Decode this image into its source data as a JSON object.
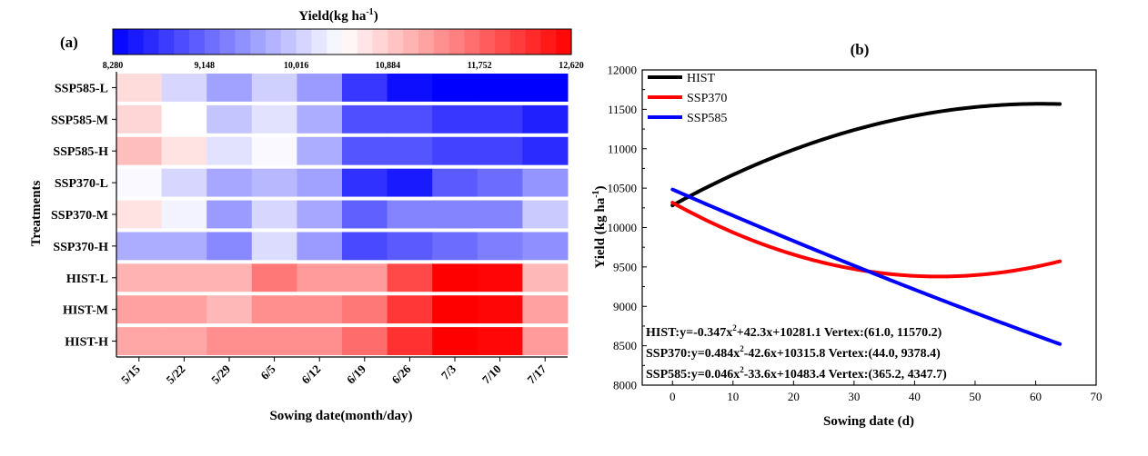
{
  "panel_a": {
    "label": "(a)",
    "colorbar_title": "Yield(kg ha",
    "colorbar_title_sup": "-1",
    "colorbar_title_end": ")",
    "colorbar_ticks": [
      "8,280",
      "9,148",
      "10,016",
      "10,884",
      "11,752",
      "12,620"
    ],
    "ylabel": "Treatments",
    "xlabel": "Sowing date(month/day)"
  },
  "panel_b": {
    "label": "(b)",
    "ylabel_main": "Yield (kg ha",
    "ylabel_sup": "-1",
    "ylabel_end": ")",
    "xlabel": "Sowing date (d)",
    "equations": [
      {
        "pre": "HIST:y=-0.347x",
        "sup": "2",
        "post": "+42.3x+10281.1 Vertex:(61.0, 11570.2)"
      },
      {
        "pre": "SSP370:y=0.484x",
        "sup": "2",
        "post": "-42.6x+10315.8 Vertex:(44.0, 9378.4)"
      },
      {
        "pre": "SSP585:y=0.046x",
        "sup": "2",
        "post": "-33.6x+10483.4 Vertex:(365.2, 4347.7)"
      }
    ]
  },
  "chart_data": [
    {
      "type": "heatmap",
      "x_categories": [
        "5/15",
        "5/22",
        "5/29",
        "6/5",
        "6/12",
        "6/19",
        "6/26",
        "7/3",
        "7/10",
        "7/17"
      ],
      "y_categories": [
        "SSP585-L",
        "SSP585-M",
        "SSP585-H",
        "SSP370-L",
        "SSP370-M",
        "SSP370-H",
        "HIST-L",
        "HIST-M",
        "HIST-H"
      ],
      "xlabel": "Sowing date(month/day)",
      "ylabel": "Treatments",
      "colorbar": {
        "min": 8280,
        "max": 12620,
        "low_color": "#0000ff",
        "mid_color": "#ffffff",
        "high_color": "#ff0000"
      },
      "values": [
        [
          10750,
          10100,
          9650,
          10050,
          9600,
          8750,
          8400,
          8280,
          8280,
          8280
        ],
        [
          10800,
          10450,
          9950,
          10200,
          9750,
          8950,
          8950,
          8750,
          8750,
          8550
        ],
        [
          11000,
          10700,
          10200,
          10400,
          9750,
          9000,
          9000,
          8850,
          8850,
          8650
        ],
        [
          10400,
          10100,
          9700,
          9850,
          9650,
          8700,
          8500,
          9050,
          9200,
          9550
        ],
        [
          10700,
          10350,
          9600,
          10100,
          9700,
          9100,
          9400,
          9400,
          9400,
          10000
        ],
        [
          9750,
          9750,
          9450,
          10150,
          9600,
          8900,
          9050,
          9200,
          9350,
          9500
        ],
        [
          11100,
          11100,
          11100,
          11600,
          11300,
          11300,
          12000,
          12620,
          12580,
          11050
        ],
        [
          11250,
          11250,
          11050,
          11400,
          11400,
          11600,
          12150,
          12620,
          12570,
          11250
        ],
        [
          11200,
          11200,
          11400,
          11400,
          11400,
          11700,
          12200,
          12620,
          12560,
          11300
        ]
      ]
    },
    {
      "type": "line",
      "xlabel": "Sowing date (d)",
      "ylabel": "Yield (kg ha-1)",
      "xlim": [
        -5,
        70
      ],
      "ylim": [
        8000,
        12000
      ],
      "xticks": [
        0,
        10,
        20,
        30,
        40,
        50,
        60,
        70
      ],
      "yticks": [
        8000,
        8500,
        9000,
        9500,
        10000,
        10500,
        11000,
        11500,
        12000
      ],
      "legend_position": "top-left",
      "series": [
        {
          "name": "HIST",
          "color": "#000000",
          "a": -0.347,
          "b": 42.3,
          "c": 10281.1,
          "x_range": [
            0,
            64
          ]
        },
        {
          "name": "SSP370",
          "color": "#ff0000",
          "a": 0.484,
          "b": -42.6,
          "c": 10315.8,
          "x_range": [
            0,
            64
          ]
        },
        {
          "name": "SSP585",
          "color": "#0000ff",
          "a": 0.046,
          "b": -33.6,
          "c": 10483.4,
          "x_range": [
            0,
            64
          ]
        }
      ]
    }
  ]
}
